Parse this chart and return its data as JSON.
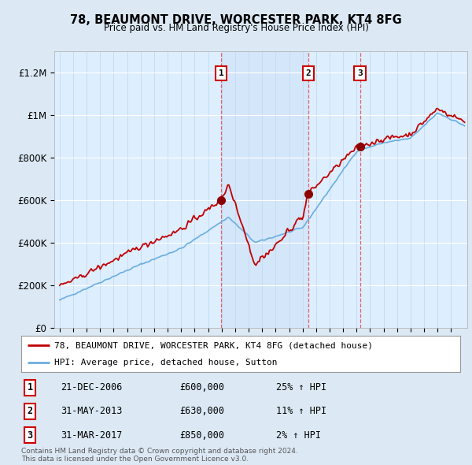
{
  "title": "78, BEAUMONT DRIVE, WORCESTER PARK, KT4 8FG",
  "subtitle": "Price paid vs. HM Land Registry's House Price Index (HPI)",
  "background_color": "#dce9f5",
  "plot_bg_color": "#ddeeff",
  "ylim": [
    0,
    1300000
  ],
  "yticks": [
    0,
    200000,
    400000,
    600000,
    800000,
    1000000,
    1200000
  ],
  "ytick_labels": [
    "£0",
    "£200K",
    "£400K",
    "£600K",
    "£800K",
    "£1M",
    "£1.2M"
  ],
  "sale_dates_num": [
    2006.97,
    2013.42,
    2017.25
  ],
  "sale_prices": [
    600000,
    630000,
    850000
  ],
  "sale_labels": [
    "1",
    "2",
    "3"
  ],
  "vline_dates": [
    2006.97,
    2013.42,
    2017.25
  ],
  "hpi_color": "#6aaee0",
  "price_color": "#c00000",
  "dot_color": "#8b0000",
  "legend_line1": "78, BEAUMONT DRIVE, WORCESTER PARK, KT4 8FG (detached house)",
  "legend_line2": "HPI: Average price, detached house, Sutton",
  "table_data": [
    [
      "1",
      "21-DEC-2006",
      "£600,000",
      "25% ↑ HPI"
    ],
    [
      "2",
      "31-MAY-2013",
      "£630,000",
      "11% ↑ HPI"
    ],
    [
      "3",
      "31-MAR-2017",
      "£850,000",
      "2% ↑ HPI"
    ]
  ],
  "footer": "Contains HM Land Registry data © Crown copyright and database right 2024.\nThis data is licensed under the Open Government Licence v3.0.",
  "xmin": 1994.6,
  "xmax": 2025.2,
  "first_purchase_year": 1995.0,
  "first_purchase_price": 195000
}
